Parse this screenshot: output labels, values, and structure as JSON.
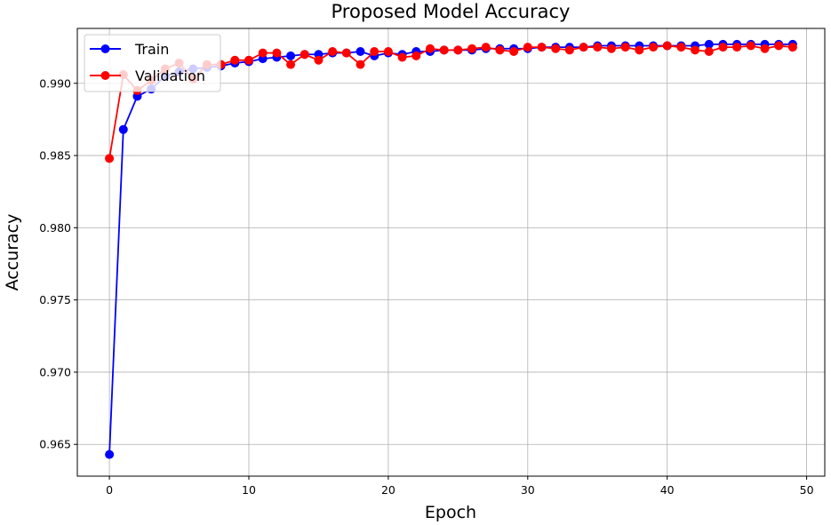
{
  "chart_data": {
    "type": "line",
    "title": "Proposed Model Accuracy",
    "xlabel": "Epoch",
    "ylabel": "Accuracy",
    "xlim": [
      -2.3,
      51.3
    ],
    "ylim": [
      0.9628,
      0.9938
    ],
    "xticks": [
      0,
      10,
      20,
      30,
      40,
      50
    ],
    "yticks": [
      0.965,
      0.97,
      0.975,
      0.98,
      0.985,
      0.99
    ],
    "ytick_labels": [
      "0.965",
      "0.970",
      "0.975",
      "0.980",
      "0.985",
      "0.990"
    ],
    "grid": true,
    "legend_position": "top-left",
    "x": [
      0,
      1,
      2,
      3,
      4,
      5,
      6,
      7,
      8,
      9,
      10,
      11,
      12,
      13,
      14,
      15,
      16,
      17,
      18,
      19,
      20,
      21,
      22,
      23,
      24,
      25,
      26,
      27,
      28,
      29,
      30,
      31,
      32,
      33,
      34,
      35,
      36,
      37,
      38,
      39,
      40,
      41,
      42,
      43,
      44,
      45,
      46,
      47,
      48,
      49
    ],
    "series": [
      {
        "name": "Train",
        "color": "#0000ff",
        "values": [
          0.9643,
          0.9868,
          0.9891,
          0.9896,
          0.9905,
          0.9908,
          0.991,
          0.9911,
          0.9912,
          0.9914,
          0.9915,
          0.9917,
          0.9918,
          0.9919,
          0.992,
          0.992,
          0.9921,
          0.9921,
          0.9922,
          0.9919,
          0.9921,
          0.992,
          0.9922,
          0.9922,
          0.9923,
          0.9923,
          0.9923,
          0.9924,
          0.9924,
          0.9924,
          0.9924,
          0.9925,
          0.9925,
          0.9925,
          0.9925,
          0.9926,
          0.9926,
          0.9926,
          0.9926,
          0.9926,
          0.9926,
          0.9926,
          0.9926,
          0.9927,
          0.9927,
          0.9927,
          0.9927,
          0.9927,
          0.9927,
          0.9927
        ]
      },
      {
        "name": "Validation",
        "color": "#ff0000",
        "values": [
          0.9848,
          0.9906,
          0.9895,
          0.9902,
          0.991,
          0.9914,
          0.9903,
          0.9913,
          0.9913,
          0.9916,
          0.9916,
          0.9921,
          0.9921,
          0.9913,
          0.992,
          0.9916,
          0.9922,
          0.9921,
          0.9913,
          0.9922,
          0.9922,
          0.9918,
          0.9919,
          0.9924,
          0.9923,
          0.9923,
          0.9924,
          0.9925,
          0.9923,
          0.9922,
          0.9925,
          0.9925,
          0.9924,
          0.9923,
          0.9925,
          0.9925,
          0.9924,
          0.9925,
          0.9923,
          0.9925,
          0.9926,
          0.9925,
          0.9923,
          0.9922,
          0.9925,
          0.9925,
          0.9926,
          0.9924,
          0.9926,
          0.9925
        ]
      }
    ]
  }
}
